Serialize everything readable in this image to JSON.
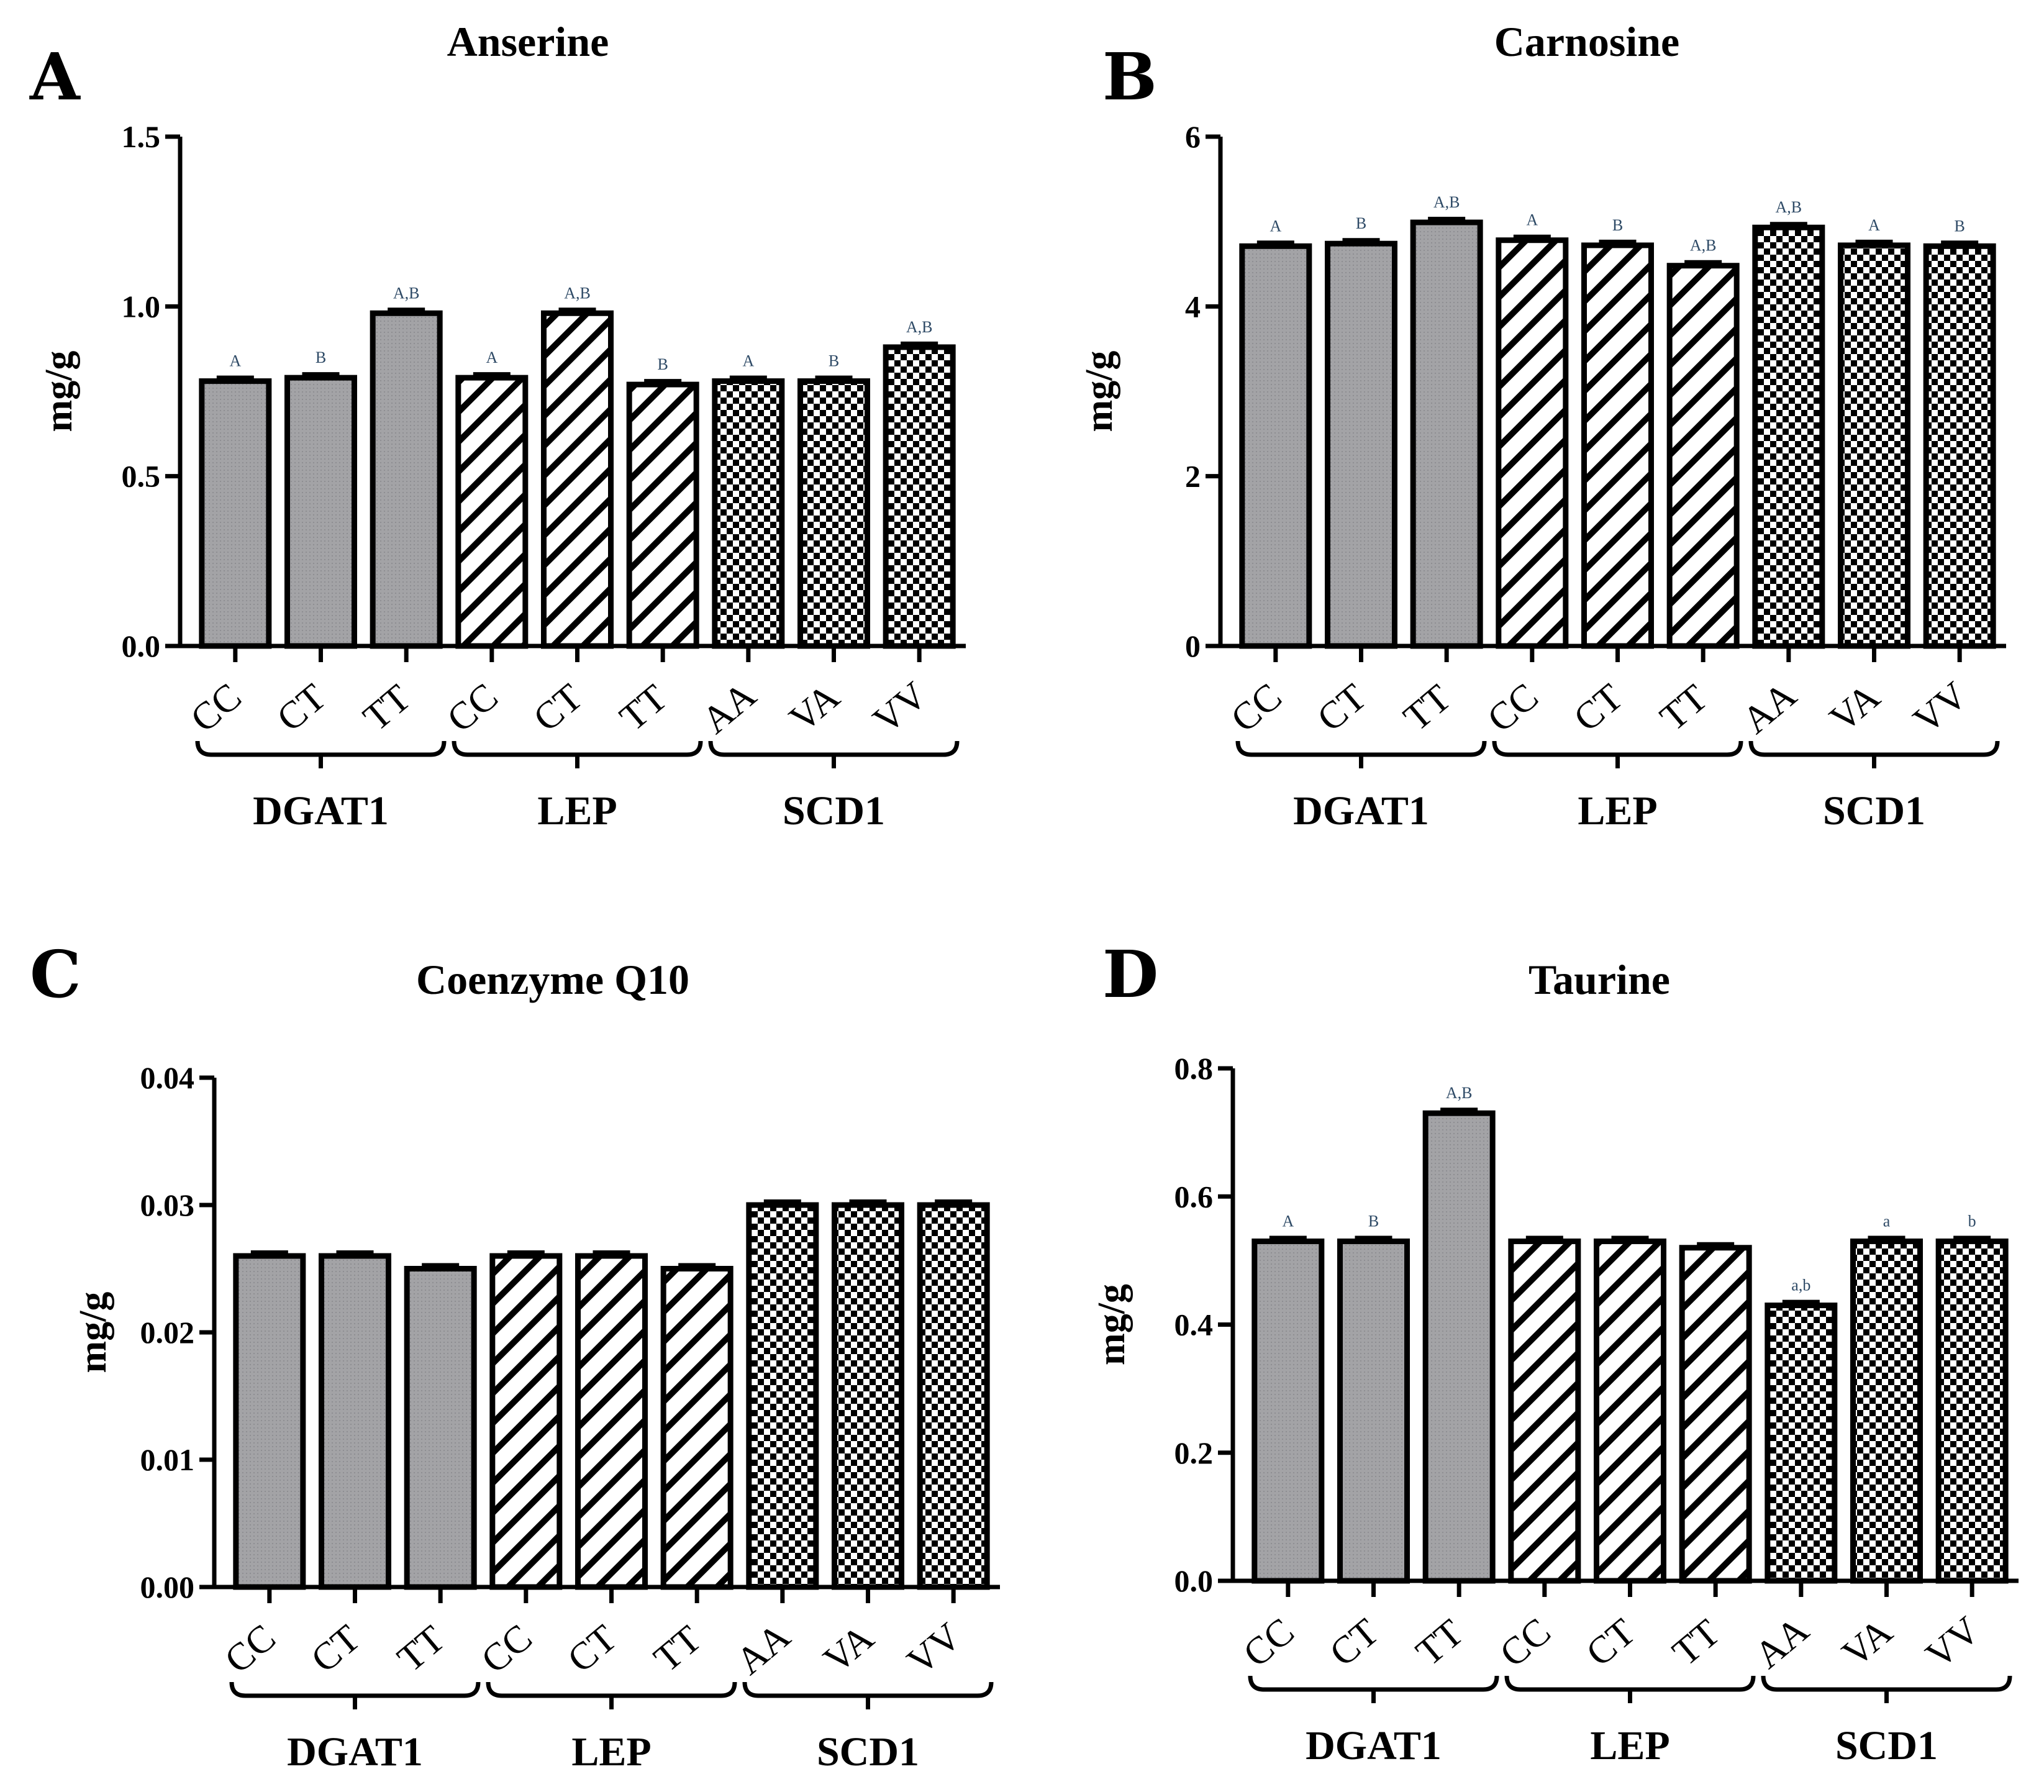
{
  "chart_data": [
    {
      "panel": "A",
      "type": "bar",
      "title": "Anserine",
      "ylabel": "mg/g",
      "ylim": [
        0,
        1.5
      ],
      "yticks": [
        "0.0",
        "0.5",
        "1.0",
        "1.5"
      ],
      "categories": [
        "CC",
        "CT",
        "TT",
        "CC",
        "CT",
        "TT",
        "AA",
        "VA",
        "VV"
      ],
      "values": [
        0.78,
        0.79,
        0.98,
        0.79,
        0.98,
        0.77,
        0.78,
        0.78,
        0.88
      ],
      "significance": [
        "A",
        "B",
        "A,B",
        "A",
        "A,B",
        "B",
        "A",
        "B",
        "A,B"
      ],
      "patterns": [
        "solid",
        "solid",
        "solid",
        "hatch",
        "hatch",
        "hatch",
        "checker",
        "checker",
        "checker"
      ],
      "groups": [
        {
          "label": "DGAT1",
          "size": 3
        },
        {
          "label": "LEP",
          "size": 3
        },
        {
          "label": "SCD1",
          "size": 3
        }
      ]
    },
    {
      "panel": "B",
      "type": "bar",
      "title": "Carnosine",
      "ylabel": "mg/g",
      "ylim": [
        0,
        6
      ],
      "yticks": [
        "0",
        "2",
        "4",
        "6"
      ],
      "categories": [
        "CC",
        "CT",
        "TT",
        "CC",
        "CT",
        "TT",
        "AA",
        "VA",
        "VV"
      ],
      "values": [
        4.71,
        4.74,
        4.99,
        4.78,
        4.72,
        4.48,
        4.93,
        4.72,
        4.71
      ],
      "significance": [
        "A",
        "B",
        "A,B",
        "A",
        "B",
        "A,B",
        "A,B",
        "A",
        "B"
      ],
      "patterns": [
        "solid",
        "solid",
        "solid",
        "hatch",
        "hatch",
        "hatch",
        "checker",
        "checker",
        "checker"
      ],
      "groups": [
        {
          "label": "DGAT1",
          "size": 3
        },
        {
          "label": "LEP",
          "size": 3
        },
        {
          "label": "SCD1",
          "size": 3
        }
      ]
    },
    {
      "panel": "C",
      "type": "bar",
      "title": "Coenzyme Q10",
      "ylabel": "mg/g",
      "ylim": [
        0,
        0.04
      ],
      "yticks": [
        "0.00",
        "0.01",
        "0.02",
        "0.03",
        "0.04"
      ],
      "categories": [
        "CC",
        "CT",
        "TT",
        "CC",
        "CT",
        "TT",
        "AA",
        "VA",
        "VV"
      ],
      "values": [
        0.026,
        0.026,
        0.025,
        0.026,
        0.026,
        0.025,
        0.03,
        0.03,
        0.03
      ],
      "significance": [
        "",
        "",
        "",
        "",
        "",
        "",
        "",
        "",
        ""
      ],
      "patterns": [
        "solid",
        "solid",
        "solid",
        "hatch",
        "hatch",
        "hatch",
        "checker",
        "checker",
        "checker"
      ],
      "groups": [
        {
          "label": "DGAT1",
          "size": 3
        },
        {
          "label": "LEP",
          "size": 3
        },
        {
          "label": "SCD1",
          "size": 3
        }
      ]
    },
    {
      "panel": "D",
      "type": "bar",
      "title": "Taurine",
      "ylabel": "mg/g",
      "ylim": [
        0,
        0.8
      ],
      "yticks": [
        "0.0",
        "0.2",
        "0.4",
        "0.6",
        "0.8"
      ],
      "categories": [
        "CC",
        "CT",
        "TT",
        "CC",
        "CT",
        "TT",
        "AA",
        "VA",
        "VV"
      ],
      "values": [
        0.53,
        0.53,
        0.73,
        0.53,
        0.53,
        0.52,
        0.43,
        0.53,
        0.53
      ],
      "significance": [
        "A",
        "B",
        "A,B",
        "",
        "",
        "",
        "a,b",
        "a",
        "b"
      ],
      "patterns": [
        "solid",
        "solid",
        "solid",
        "hatch",
        "hatch",
        "hatch",
        "checker",
        "checker",
        "checker"
      ],
      "groups": [
        {
          "label": "DGAT1",
          "size": 3
        },
        {
          "label": "LEP",
          "size": 3
        },
        {
          "label": "SCD1",
          "size": 3
        }
      ]
    }
  ]
}
